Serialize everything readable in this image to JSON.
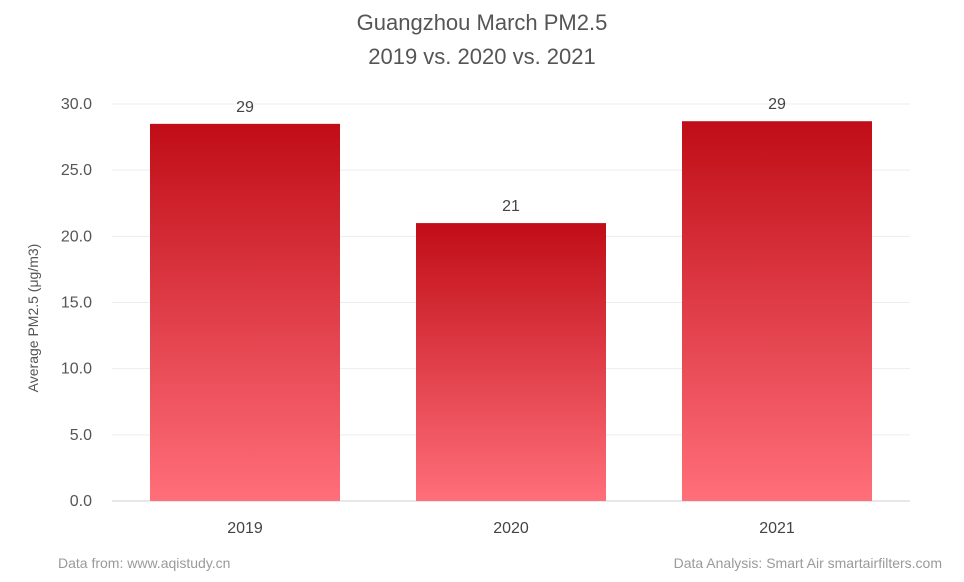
{
  "chart_data": {
    "type": "bar",
    "title": "Guangzhou March PM2.5",
    "subtitle": "2019 vs. 2020 vs. 2021",
    "xlabel": "",
    "ylabel": "Average PM2.5 (μg/m3)",
    "categories": [
      "2019",
      "2020",
      "2021"
    ],
    "values": [
      28.5,
      21.0,
      28.7
    ],
    "data_labels": [
      "29",
      "21",
      "29"
    ],
    "ylim": [
      0,
      30
    ],
    "yticks": [
      "0.0",
      "5.0",
      "10.0",
      "15.0",
      "20.0",
      "25.0",
      "30.0"
    ],
    "grid": true,
    "legend": "none",
    "colors": {
      "bar_top": "#c00d17",
      "bar_bottom": "#ff6f7a",
      "grid": "#ededed",
      "axis": "#d0d0d0"
    }
  },
  "footer": {
    "source": "Data from: www.aqistudy.cn",
    "credit": "Data Analysis: Smart Air smartairfilters.com"
  }
}
